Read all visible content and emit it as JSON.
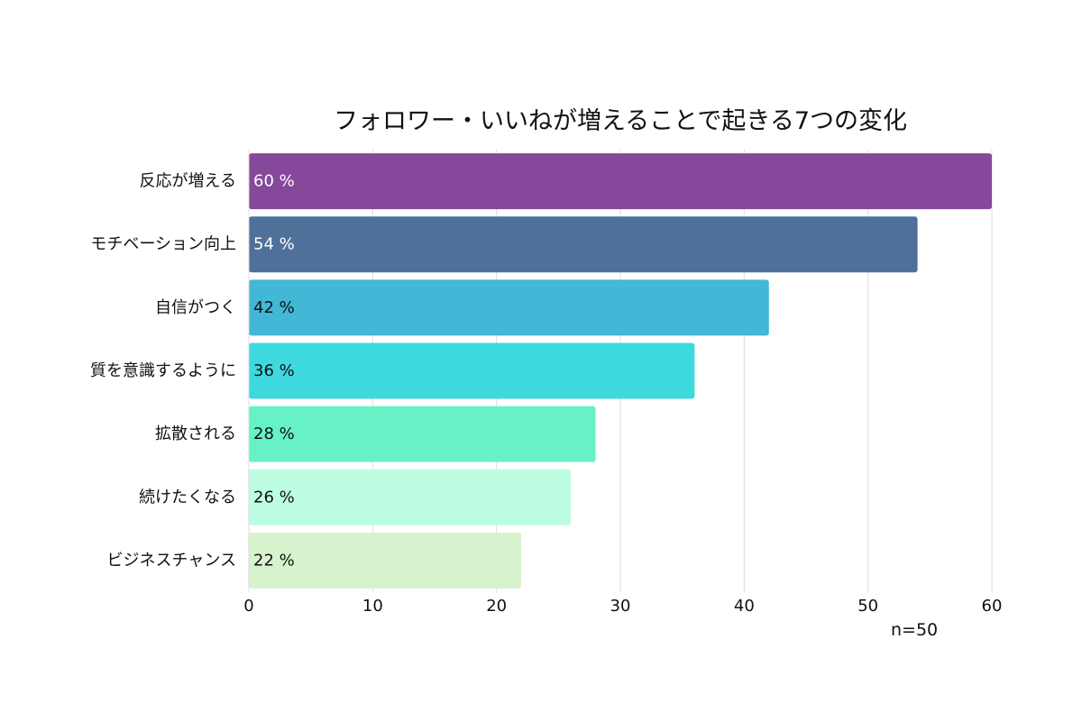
{
  "chart_data": {
    "type": "bar",
    "orientation": "horizontal",
    "title": "フォロワー・いいねが増えることで起きる7つの変化",
    "categories": [
      "反応が増える",
      "モチベーション向上",
      "自信がつく",
      "質を意識するように",
      "拡散される",
      "続けたくなる",
      "ビジネスチャンス"
    ],
    "values": [
      60,
      54,
      42,
      36,
      28,
      26,
      22
    ],
    "data_labels": [
      "60 %",
      "54 %",
      "42 %",
      "36 %",
      "28 %",
      "26 %",
      "22 %"
    ],
    "colors": [
      "#86489a",
      "#4f7099",
      "#42b7d6",
      "#3ed9df",
      "#66f2c6",
      "#bdfde2",
      "#d7f3cd"
    ],
    "label_colors": [
      "#ffffff",
      "#ffffff",
      "#111111",
      "#111111",
      "#111111",
      "#111111",
      "#111111"
    ],
    "xlim": [
      0,
      60
    ],
    "x_ticks": [
      "0",
      "10",
      "20",
      "30",
      "40",
      "50",
      "60"
    ],
    "grid": "vertical",
    "xlabel": "",
    "ylabel": ""
  },
  "note": "n=50"
}
